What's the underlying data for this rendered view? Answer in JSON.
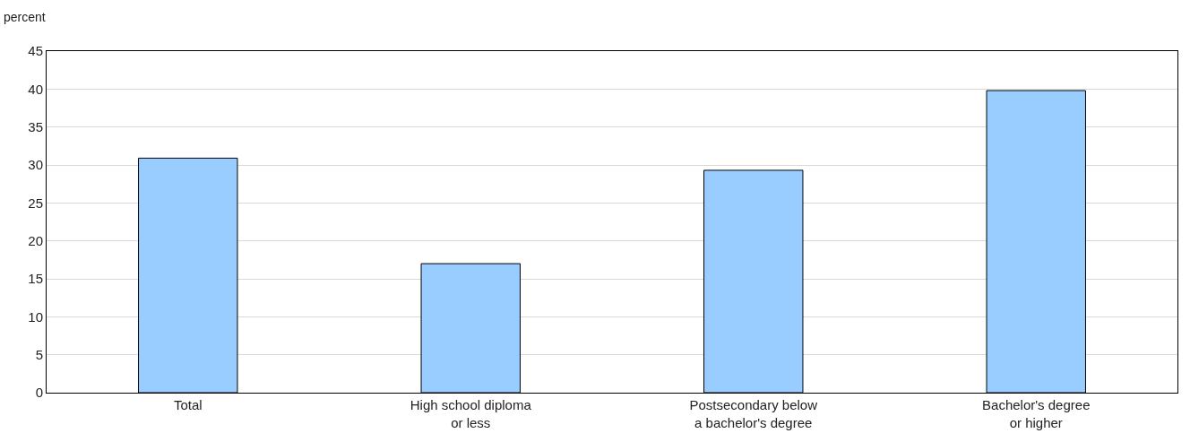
{
  "chart_data": {
    "type": "bar",
    "ylabel": "percent",
    "categories": [
      "Total",
      "High school diploma\nor less",
      "Postsecondary below\na bachelor's degree",
      "Bachelor's degree\nor higher"
    ],
    "values": [
      30.9,
      17.0,
      29.3,
      39.8
    ],
    "color": "#99ccff",
    "ylim": [
      0,
      45
    ],
    "yticks": [
      0,
      5,
      10,
      15,
      20,
      25,
      30,
      35,
      40,
      45
    ],
    "grid": "y"
  }
}
